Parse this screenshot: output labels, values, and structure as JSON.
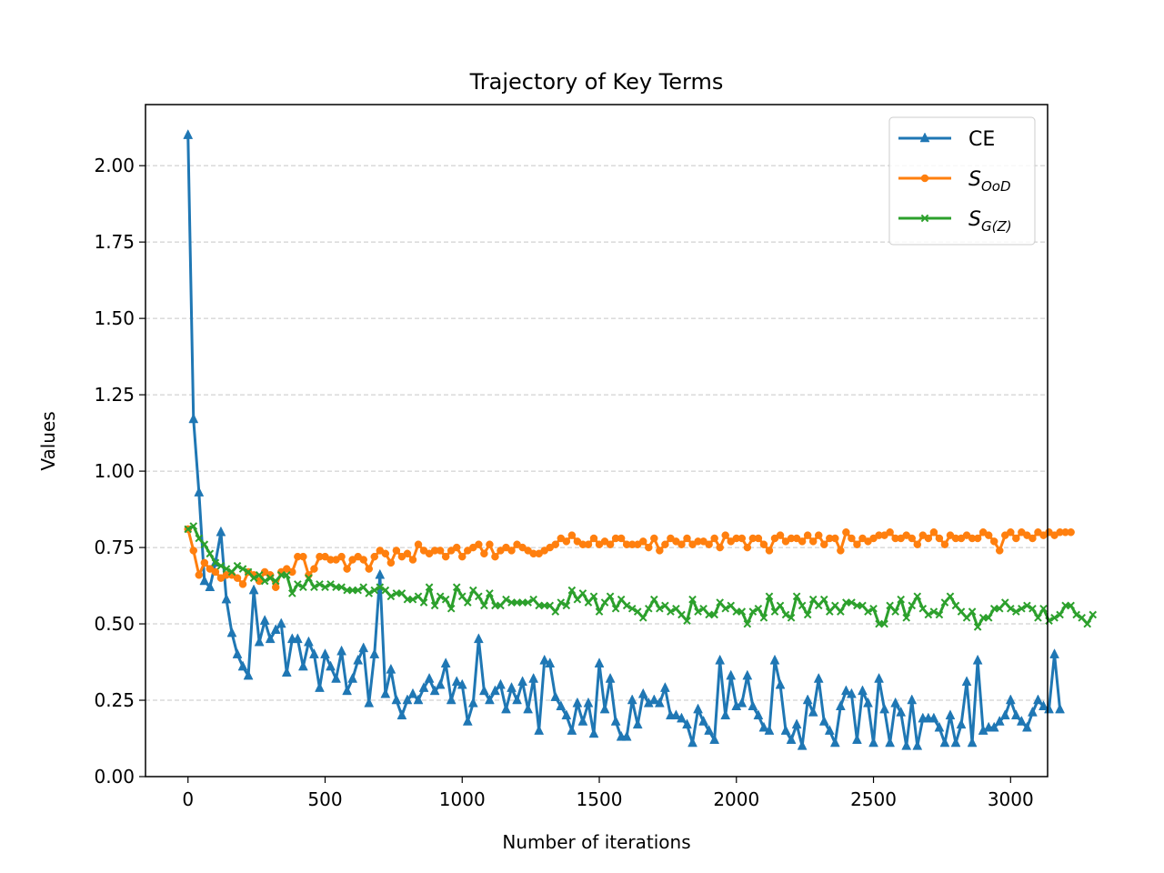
{
  "chart_data": {
    "type": "line",
    "title": "Trajectory of Key Terms",
    "xlabel": "Number of iterations",
    "ylabel": "Values",
    "xlim": [
      -155,
      3135
    ],
    "ylim": [
      0,
      2.2
    ],
    "xticks": [
      0,
      500,
      1000,
      1500,
      2000,
      2500,
      3000
    ],
    "xtick_labels": [
      "0",
      "500",
      "1000",
      "1500",
      "2000",
      "2500",
      "3000"
    ],
    "yticks": [
      0,
      0.25,
      0.5,
      0.75,
      1.0,
      1.25,
      1.5,
      1.75,
      2.0
    ],
    "ytick_labels": [
      "0.00",
      "0.25",
      "0.50",
      "0.75",
      "1.00",
      "1.25",
      "1.50",
      "1.75",
      "2.00"
    ],
    "grid": "y-dashed",
    "legend_position": "top-right",
    "x_start": 0,
    "x_step": 20,
    "series": [
      {
        "name": "CE",
        "legend_main": "CE",
        "legend_sub": "",
        "color": "#1f77b4",
        "marker": "triangle",
        "values": [
          2.1,
          1.17,
          0.93,
          0.64,
          0.62,
          0.7,
          0.8,
          0.58,
          0.47,
          0.4,
          0.36,
          0.33,
          0.61,
          0.44,
          0.51,
          0.45,
          0.48,
          0.5,
          0.34,
          0.45,
          0.45,
          0.36,
          0.44,
          0.4,
          0.29,
          0.4,
          0.36,
          0.32,
          0.41,
          0.28,
          0.32,
          0.38,
          0.42,
          0.24,
          0.4,
          0.66,
          0.27,
          0.35,
          0.25,
          0.2,
          0.25,
          0.27,
          0.25,
          0.29,
          0.32,
          0.28,
          0.3,
          0.37,
          0.25,
          0.31,
          0.3,
          0.18,
          0.24,
          0.45,
          0.28,
          0.25,
          0.28,
          0.3,
          0.22,
          0.29,
          0.25,
          0.31,
          0.22,
          0.32,
          0.15,
          0.38,
          0.37,
          0.26,
          0.23,
          0.2,
          0.15,
          0.24,
          0.18,
          0.24,
          0.14,
          0.37,
          0.22,
          0.32,
          0.18,
          0.13,
          0.13,
          0.25,
          0.17,
          0.27,
          0.24,
          0.25,
          0.24,
          0.29,
          0.2,
          0.2,
          0.19,
          0.17,
          0.11,
          0.22,
          0.18,
          0.15,
          0.12,
          0.38,
          0.2,
          0.33,
          0.23,
          0.24,
          0.33,
          0.23,
          0.2,
          0.16,
          0.15,
          0.38,
          0.3,
          0.15,
          0.12,
          0.17,
          0.1,
          0.25,
          0.21,
          0.32,
          0.18,
          0.15,
          0.11,
          0.23,
          0.28,
          0.27,
          0.12,
          0.28,
          0.24,
          0.11,
          0.32,
          0.22,
          0.11,
          0.24,
          0.21,
          0.1,
          0.25,
          0.1,
          0.19,
          0.19,
          0.19,
          0.16,
          0.11,
          0.2,
          0.11,
          0.17,
          0.31,
          0.11,
          0.38,
          0.15,
          0.16,
          0.16,
          0.18,
          0.2,
          0.25,
          0.2,
          0.18,
          0.16,
          0.21,
          0.25,
          0.23,
          0.22,
          0.4,
          0.22
        ]
      },
      {
        "name": "S_OoD",
        "legend_main": "S",
        "legend_sub": "OoD",
        "color": "#ff7f0e",
        "marker": "circle",
        "values": [
          0.81,
          0.74,
          0.66,
          0.7,
          0.68,
          0.67,
          0.65,
          0.66,
          0.66,
          0.65,
          0.63,
          0.67,
          0.66,
          0.64,
          0.67,
          0.66,
          0.62,
          0.67,
          0.68,
          0.67,
          0.72,
          0.72,
          0.66,
          0.68,
          0.72,
          0.72,
          0.71,
          0.71,
          0.72,
          0.68,
          0.71,
          0.72,
          0.71,
          0.68,
          0.72,
          0.74,
          0.73,
          0.7,
          0.74,
          0.72,
          0.73,
          0.71,
          0.76,
          0.74,
          0.73,
          0.74,
          0.74,
          0.72,
          0.74,
          0.75,
          0.72,
          0.74,
          0.75,
          0.76,
          0.73,
          0.76,
          0.72,
          0.74,
          0.75,
          0.74,
          0.76,
          0.75,
          0.74,
          0.73,
          0.73,
          0.74,
          0.75,
          0.76,
          0.78,
          0.77,
          0.79,
          0.77,
          0.76,
          0.76,
          0.78,
          0.76,
          0.77,
          0.76,
          0.78,
          0.78,
          0.76,
          0.76,
          0.76,
          0.77,
          0.75,
          0.78,
          0.74,
          0.76,
          0.78,
          0.77,
          0.76,
          0.78,
          0.76,
          0.77,
          0.77,
          0.76,
          0.78,
          0.75,
          0.79,
          0.77,
          0.78,
          0.78,
          0.75,
          0.78,
          0.78,
          0.76,
          0.74,
          0.78,
          0.79,
          0.77,
          0.78,
          0.78,
          0.77,
          0.79,
          0.77,
          0.79,
          0.76,
          0.78,
          0.78,
          0.74,
          0.8,
          0.78,
          0.76,
          0.78,
          0.77,
          0.78,
          0.79,
          0.79,
          0.8,
          0.78,
          0.78,
          0.79,
          0.78,
          0.76,
          0.79,
          0.78,
          0.8,
          0.78,
          0.76,
          0.79,
          0.78,
          0.78,
          0.79,
          0.78,
          0.78,
          0.8,
          0.79,
          0.77,
          0.74,
          0.79,
          0.8,
          0.78,
          0.8,
          0.79,
          0.78,
          0.8,
          0.79,
          0.8,
          0.79,
          0.8,
          0.8,
          0.8
        ]
      },
      {
        "name": "S_G(Z)",
        "legend_main": "S",
        "legend_sub": "G(Z)",
        "color": "#2ca02c",
        "marker": "x",
        "values": [
          0.81,
          0.82,
          0.78,
          0.76,
          0.73,
          0.7,
          0.69,
          0.68,
          0.67,
          0.69,
          0.68,
          0.67,
          0.65,
          0.66,
          0.64,
          0.65,
          0.64,
          0.66,
          0.66,
          0.6,
          0.63,
          0.62,
          0.65,
          0.62,
          0.63,
          0.62,
          0.63,
          0.62,
          0.62,
          0.61,
          0.61,
          0.61,
          0.62,
          0.6,
          0.61,
          0.62,
          0.61,
          0.59,
          0.6,
          0.6,
          0.58,
          0.58,
          0.59,
          0.57,
          0.62,
          0.56,
          0.59,
          0.58,
          0.55,
          0.62,
          0.59,
          0.57,
          0.61,
          0.59,
          0.56,
          0.6,
          0.56,
          0.56,
          0.58,
          0.57,
          0.57,
          0.57,
          0.57,
          0.58,
          0.56,
          0.56,
          0.56,
          0.54,
          0.57,
          0.56,
          0.61,
          0.58,
          0.6,
          0.57,
          0.59,
          0.54,
          0.57,
          0.59,
          0.55,
          0.58,
          0.56,
          0.55,
          0.54,
          0.52,
          0.55,
          0.58,
          0.55,
          0.56,
          0.54,
          0.55,
          0.53,
          0.51,
          0.58,
          0.54,
          0.55,
          0.53,
          0.53,
          0.57,
          0.55,
          0.56,
          0.54,
          0.54,
          0.5,
          0.54,
          0.55,
          0.52,
          0.59,
          0.54,
          0.56,
          0.53,
          0.52,
          0.59,
          0.56,
          0.53,
          0.58,
          0.56,
          0.58,
          0.54,
          0.56,
          0.54,
          0.57,
          0.57,
          0.56,
          0.56,
          0.54,
          0.55,
          0.5,
          0.5,
          0.56,
          0.54,
          0.58,
          0.52,
          0.56,
          0.59,
          0.55,
          0.53,
          0.54,
          0.53,
          0.57,
          0.59,
          0.56,
          0.54,
          0.52,
          0.54,
          0.49,
          0.52,
          0.52,
          0.55,
          0.55,
          0.57,
          0.55,
          0.54,
          0.55,
          0.56,
          0.55,
          0.52,
          0.55,
          0.51,
          0.52,
          0.53,
          0.56,
          0.56,
          0.53,
          0.52,
          0.5,
          0.53
        ]
      }
    ]
  }
}
